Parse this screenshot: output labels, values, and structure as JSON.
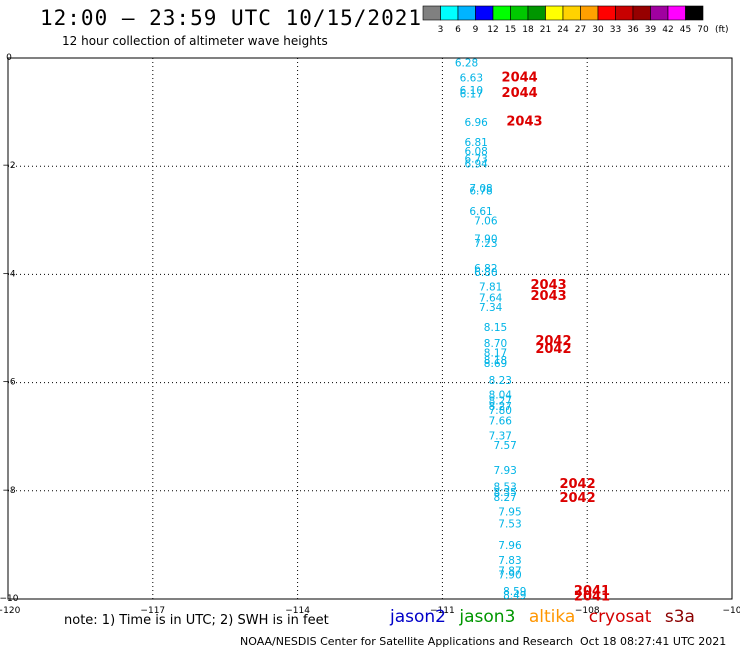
{
  "title": "12:00 – 23:59 UTC 10/15/2021",
  "subtitle": "12 hour collection of altimeter wave heights",
  "colorbar": {
    "labels": [
      "3",
      "6",
      "9",
      "12",
      "15",
      "18",
      "21",
      "24",
      "27",
      "30",
      "33",
      "36",
      "39",
      "42",
      "45",
      "70"
    ],
    "unit": "(ft)",
    "colors": [
      "#808080",
      "#00ffff",
      "#00b4ff",
      "#0000ff",
      "#00ff00",
      "#00c800",
      "#009600",
      "#ffff00",
      "#ffd200",
      "#ffa000",
      "#ff0000",
      "#c80000",
      "#960000",
      "#a000a0",
      "#ff00ff",
      "#000000"
    ]
  },
  "note": "note: 1) Time is in UTC; 2) SWH is in feet",
  "legend": [
    {
      "label": "jason2",
      "color": "#0000c8"
    },
    {
      "label": "jason3",
      "color": "#009600"
    },
    {
      "label": "altika",
      "color": "#ff9600"
    },
    {
      "label": "cryosat",
      "color": "#d20000"
    },
    {
      "label": "s3a",
      "color": "#8b0000"
    }
  ],
  "credit": "NOAA/NESDIS Center for Satellite Applications and Research",
  "timestamp": "Oct 18 08:27:41 UTC 2021",
  "chart_data": {
    "type": "scatter",
    "xlim": [
      -120,
      -105
    ],
    "ylim": [
      -10,
      0
    ],
    "x_ticks": [
      -117,
      -114,
      -111,
      -108
    ],
    "x_tick_labels": [
      "−117",
      "−114",
      "−111",
      "−108"
    ],
    "x_corner_labels": [
      "−120",
      "−10"
    ],
    "y_ticks": [
      0,
      -2,
      -4,
      -6,
      -8,
      -10
    ],
    "y_tick_labels": [
      "0",
      "−2",
      "−4",
      "−6",
      "−8",
      "−10"
    ],
    "grid": true,
    "series": [
      {
        "color": "#00b4e6",
        "points": [
          {
            "x": -110.5,
            "y": -0.08,
            "label": "6.28"
          },
          {
            "x": -110.4,
            "y": -0.36,
            "label": "6.63"
          },
          {
            "x": -110.4,
            "y": -0.59,
            "label": "6.10"
          },
          {
            "x": -110.4,
            "y": -0.66,
            "label": "6.17"
          },
          {
            "x": -110.3,
            "y": -1.18,
            "label": "6.96"
          },
          {
            "x": -110.3,
            "y": -1.55,
            "label": "6.81"
          },
          {
            "x": -110.3,
            "y": -1.72,
            "label": "6.08"
          },
          {
            "x": -110.3,
            "y": -1.86,
            "label": "6.73"
          },
          {
            "x": -110.3,
            "y": -1.95,
            "label": "6.94"
          },
          {
            "x": -110.2,
            "y": -2.4,
            "label": "7.08"
          },
          {
            "x": -110.2,
            "y": -2.45,
            "label": "6.78"
          },
          {
            "x": -110.2,
            "y": -2.83,
            "label": "6.61"
          },
          {
            "x": -110.1,
            "y": -3.0,
            "label": "7.06"
          },
          {
            "x": -110.1,
            "y": -3.34,
            "label": "7.90"
          },
          {
            "x": -110.1,
            "y": -3.42,
            "label": "7.23"
          },
          {
            "x": -110.1,
            "y": -3.88,
            "label": "6.82"
          },
          {
            "x": -110.1,
            "y": -3.96,
            "label": "6.80"
          },
          {
            "x": -110.0,
            "y": -4.22,
            "label": "7.81"
          },
          {
            "x": -110.0,
            "y": -4.43,
            "label": "7.64"
          },
          {
            "x": -110.0,
            "y": -4.6,
            "label": "7.34"
          },
          {
            "x": -109.9,
            "y": -4.97,
            "label": "8.15"
          },
          {
            "x": -109.9,
            "y": -5.27,
            "label": "8.70"
          },
          {
            "x": -109.9,
            "y": -5.44,
            "label": "8.17"
          },
          {
            "x": -109.9,
            "y": -5.58,
            "label": "8.18"
          },
          {
            "x": -109.9,
            "y": -5.64,
            "label": "8.69"
          },
          {
            "x": -109.8,
            "y": -5.95,
            "label": "8.23"
          },
          {
            "x": -109.8,
            "y": -6.22,
            "label": "8.04"
          },
          {
            "x": -109.8,
            "y": -6.33,
            "label": "8.27"
          },
          {
            "x": -109.8,
            "y": -6.43,
            "label": "8.27"
          },
          {
            "x": -109.8,
            "y": -6.51,
            "label": "7.80"
          },
          {
            "x": -109.8,
            "y": -6.7,
            "label": "7.66"
          },
          {
            "x": -109.8,
            "y": -6.98,
            "label": "7.37"
          },
          {
            "x": -109.7,
            "y": -7.15,
            "label": "7.57"
          },
          {
            "x": -109.7,
            "y": -7.62,
            "label": "7.93"
          },
          {
            "x": -109.7,
            "y": -7.92,
            "label": "8.53"
          },
          {
            "x": -109.7,
            "y": -8.02,
            "label": "8.35"
          },
          {
            "x": -109.7,
            "y": -8.11,
            "label": "8.27"
          },
          {
            "x": -109.6,
            "y": -8.38,
            "label": "7.95"
          },
          {
            "x": -109.6,
            "y": -8.6,
            "label": "7.53"
          },
          {
            "x": -109.6,
            "y": -9.0,
            "label": "7.96"
          },
          {
            "x": -109.6,
            "y": -9.28,
            "label": "7.83"
          },
          {
            "x": -109.6,
            "y": -9.47,
            "label": "7.87"
          },
          {
            "x": -109.6,
            "y": -9.55,
            "label": "7.90"
          },
          {
            "x": -109.5,
            "y": -9.85,
            "label": "8.59"
          },
          {
            "x": -109.5,
            "y": -9.93,
            "label": "8.49"
          }
        ]
      },
      {
        "color": "#dc0000",
        "points": [
          {
            "x": -109.4,
            "y": -0.36,
            "label": "2044"
          },
          {
            "x": -109.4,
            "y": -0.65,
            "label": "2044"
          },
          {
            "x": -109.3,
            "y": -1.17,
            "label": "2043"
          },
          {
            "x": -108.8,
            "y": -4.2,
            "label": "2043"
          },
          {
            "x": -108.8,
            "y": -4.4,
            "label": "2043"
          },
          {
            "x": -108.7,
            "y": -5.23,
            "label": "2042"
          },
          {
            "x": -108.7,
            "y": -5.38,
            "label": "2042"
          },
          {
            "x": -108.2,
            "y": -7.87,
            "label": "2042"
          },
          {
            "x": -108.2,
            "y": -8.13,
            "label": "2042"
          },
          {
            "x": -107.9,
            "y": -9.85,
            "label": "2041"
          },
          {
            "x": -107.9,
            "y": -9.95,
            "label": "2041"
          }
        ]
      }
    ]
  }
}
